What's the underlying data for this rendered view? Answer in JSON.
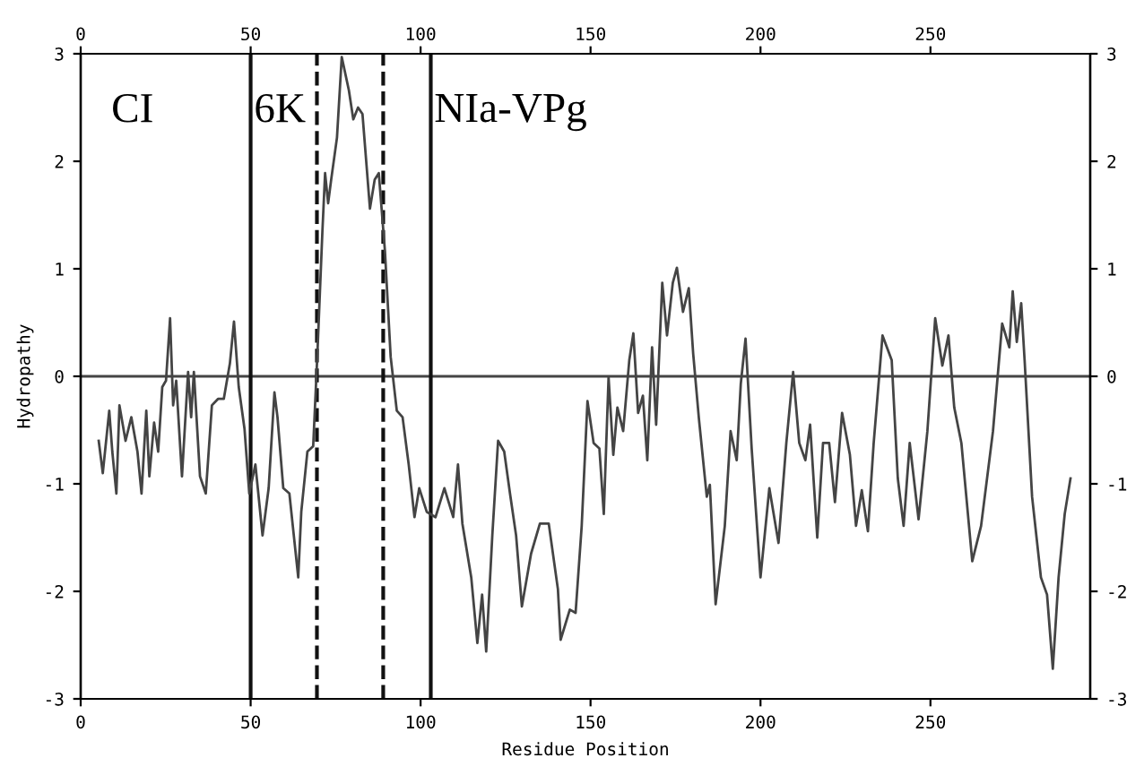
{
  "chart_data": {
    "type": "line",
    "xlabel": "Residue Position",
    "ylabel": "Hydropathy",
    "xlim": [
      0,
      297
    ],
    "xticks": [
      0,
      50,
      100,
      150,
      200,
      250
    ],
    "ylim": [
      -3,
      3
    ],
    "yticks": [
      -3,
      -2,
      -1,
      0,
      1,
      2,
      3
    ],
    "x2lim": [
      0,
      297
    ],
    "x2ticks": [
      0,
      50,
      100,
      150,
      200,
      250
    ],
    "y2lim": [
      -3,
      3
    ],
    "y2ticks": [
      -3,
      -2,
      -1,
      0,
      1,
      2,
      3
    ],
    "grid": false,
    "legend": false,
    "marker": "none",
    "line_style": "solid",
    "series": [
      {
        "color": "#444444",
        "x": [
          5.3,
          6.5,
          8.4,
          9.3,
          10.5,
          11.4,
          13.2,
          14.9,
          16.7,
          17.9,
          19.3,
          20.2,
          21.6,
          22.8,
          24,
          25.1,
          26.3,
          27.2,
          28.1,
          29.8,
          31.6,
          32.5,
          33.3,
          35.1,
          36.8,
          38.6,
          40.4,
          42.1,
          43.9,
          45.1,
          46.5,
          48.2,
          49.6,
          51.4,
          53.5,
          55.3,
          57,
          57.9,
          59.6,
          61.4,
          64,
          64.9,
          66.7,
          68.4,
          69.6,
          71.1,
          71.9,
          72.8,
          73.7,
          75.4,
          76.8,
          78.9,
          80.2,
          81.6,
          82.9,
          85.1,
          86.5,
          87.7,
          89.5,
          91.2,
          93,
          94.7,
          96.5,
          98.2,
          99.6,
          101.8,
          104.4,
          107,
          109.6,
          111,
          112.3,
          114.9,
          116.7,
          118.1,
          119.3,
          121.1,
          122.8,
          124.6,
          126.3,
          128.1,
          129.8,
          132.5,
          135.1,
          137.7,
          140.4,
          141.2,
          143.9,
          145.6,
          147.4,
          149.1,
          150.9,
          152.6,
          153.9,
          155.3,
          156.7,
          157.9,
          159.6,
          161.4,
          162.6,
          164,
          165.4,
          166.7,
          168.1,
          169.3,
          171.1,
          172.5,
          174.2,
          175.4,
          177.2,
          178.9,
          180.2,
          181.9,
          184.2,
          185.1,
          186.8,
          189.5,
          191.2,
          193,
          194.2,
          195.6,
          197.4,
          200,
          202.6,
          205.3,
          207.6,
          209.6,
          211.4,
          213.2,
          214.6,
          216.7,
          218.4,
          220.2,
          221.9,
          224,
          226.3,
          228.1,
          229.8,
          231.6,
          233.3,
          235.9,
          238.6,
          240.4,
          242.1,
          243.9,
          246.5,
          249.1,
          251.4,
          253.5,
          255.3,
          257,
          259.1,
          262.3,
          264.9,
          268.4,
          271.1,
          273.2,
          274.2,
          275.4,
          276.7,
          277.7,
          279.9,
          282.5,
          284.3,
          286,
          287.7,
          289.5,
          291.2
        ],
        "values": [
          -0.6,
          -0.9,
          -0.32,
          -0.7,
          -1.09,
          -0.27,
          -0.6,
          -0.38,
          -0.7,
          -1.09,
          -0.32,
          -0.93,
          -0.43,
          -0.7,
          -0.1,
          -0.04,
          0.54,
          -0.27,
          -0.04,
          -0.93,
          0.04,
          -0.38,
          0.04,
          -0.93,
          -1.09,
          -0.27,
          -0.21,
          -0.21,
          0.12,
          0.51,
          -0.1,
          -0.49,
          -1.09,
          -0.82,
          -1.48,
          -1.04,
          -0.15,
          -0.38,
          -1.04,
          -1.09,
          -1.87,
          -1.26,
          -0.7,
          -0.65,
          0.18,
          1.34,
          1.89,
          1.61,
          1.83,
          2.22,
          2.97,
          2.66,
          2.39,
          2.5,
          2.44,
          1.56,
          1.83,
          1.89,
          1.17,
          0.18,
          -0.32,
          -0.38,
          -0.82,
          -1.31,
          -1.04,
          -1.26,
          -1.31,
          -1.04,
          -1.31,
          -0.82,
          -1.37,
          -1.87,
          -2.48,
          -2.03,
          -2.56,
          -1.48,
          -0.6,
          -0.7,
          -1.09,
          -1.48,
          -2.14,
          -1.65,
          -1.37,
          -1.37,
          -1.98,
          -2.45,
          -2.17,
          -2.2,
          -1.39,
          -0.23,
          -0.62,
          -0.67,
          -1.28,
          -0.01,
          -0.73,
          -0.29,
          -0.51,
          0.15,
          0.4,
          -0.34,
          -0.18,
          -0.78,
          0.27,
          -0.45,
          0.87,
          0.38,
          0.87,
          1.01,
          0.6,
          0.82,
          0.21,
          -0.4,
          -1.12,
          -1.01,
          -2.12,
          -1.39,
          -0.51,
          -0.78,
          -0.07,
          0.35,
          -0.67,
          -1.87,
          -1.04,
          -1.55,
          -0.62,
          0.04,
          -0.62,
          -0.78,
          -0.45,
          -1.5,
          -0.62,
          -0.62,
          -1.17,
          -0.34,
          -0.73,
          -1.39,
          -1.06,
          -1.44,
          -0.62,
          0.38,
          0.15,
          -0.95,
          -1.39,
          -0.62,
          -1.33,
          -0.51,
          0.54,
          0.1,
          0.38,
          -0.29,
          -0.62,
          -1.72,
          -1.39,
          -0.51,
          0.49,
          0.27,
          0.79,
          0.32,
          0.68,
          0.15,
          -1.12,
          -1.87,
          -2.03,
          -2.72,
          -1.87,
          -1.28,
          -0.95
        ]
      }
    ],
    "ref_lines": [
      {
        "axis": "y",
        "value": 0,
        "color": "#444444",
        "line_style": "solid"
      },
      {
        "axis": "x",
        "value": 50,
        "color": "#111111",
        "line_style": "solid"
      },
      {
        "axis": "x",
        "value": 69.5,
        "color": "#111111",
        "line_style": "dashed"
      },
      {
        "axis": "x",
        "value": 89,
        "color": "#111111",
        "line_style": "dashed"
      },
      {
        "axis": "x",
        "value": 103,
        "color": "#111111",
        "line_style": "solid"
      }
    ],
    "annotations": [
      "CI",
      "6K",
      "NIa-VPg"
    ]
  }
}
